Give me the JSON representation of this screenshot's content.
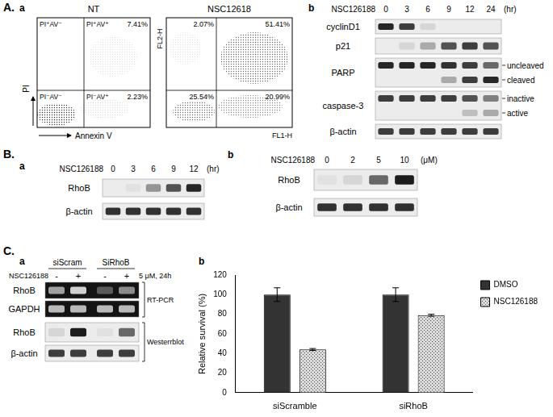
{
  "figure": {
    "A": {
      "label": "A.",
      "a": {
        "label": "a",
        "axis_y": "PI",
        "axis_x": "Annexin V",
        "y_channel": "FL2-H",
        "x_channel": "FL1-H",
        "plots": [
          {
            "title": "NT",
            "quadrants": {
              "upper_left": {
                "label": "PI⁺AV⁻"
              },
              "upper_right": {
                "label": "PI⁺AV⁺",
                "percent": "7.41%"
              },
              "lower_left": {
                "label": "PI⁻AV⁻"
              },
              "lower_right": {
                "label": "PI⁻AV⁺",
                "percent": "2.23%"
              }
            }
          },
          {
            "title": "NSC12618",
            "quadrants": {
              "upper_left": {
                "percent": "2.07%"
              },
              "upper_right": {
                "percent": "51.41%"
              },
              "lower_left": {
                "percent": "25.54%"
              },
              "lower_right": {
                "percent": "20.99%"
              }
            }
          }
        ]
      },
      "b": {
        "label": "b",
        "treatment": "NSC126188",
        "lanes": [
          "0",
          "3",
          "6",
          "9",
          "12",
          "24"
        ],
        "unit": "(hr)",
        "rows": [
          {
            "label": "cyclinD1",
            "bands": [
              [
                0.9,
                0.8,
                0.1,
                0,
                0,
                0
              ]
            ]
          },
          {
            "label": "p21",
            "bands": [
              [
                0,
                0.1,
                0.3,
                0.7,
                0.8,
                0.7
              ]
            ]
          },
          {
            "label": "PARP",
            "sublabels": [
              "uncleaved",
              "cleaved"
            ],
            "bands": [
              [
                0.9,
                0.9,
                0.9,
                0.85,
                0.8,
                0.6
              ],
              [
                0,
                0,
                0,
                0.3,
                0.8,
                0.9
              ]
            ]
          },
          {
            "label": "caspase-3",
            "sublabels": [
              "inactive",
              "active"
            ],
            "bands": [
              [
                0.8,
                0.8,
                0.8,
                0.8,
                0.7,
                0.5
              ],
              [
                0,
                0,
                0,
                0,
                0.2,
                0.3
              ]
            ]
          },
          {
            "label": "β-actin",
            "bands": [
              [
                0.8,
                0.8,
                0.8,
                0.8,
                0.8,
                0.8
              ]
            ]
          }
        ]
      }
    },
    "B": {
      "label": "B.",
      "a": {
        "label": "a",
        "treatment": "NSC126188",
        "lanes": [
          "0",
          "3",
          "6",
          "9",
          "12"
        ],
        "unit": "(hr)",
        "rows": [
          {
            "label": "RhoB",
            "bands": [
              [
                0,
                0.05,
                0.4,
                0.7,
                0.9
              ]
            ]
          },
          {
            "label": "β-actin",
            "bands": [
              [
                0.85,
                0.85,
                0.85,
                0.85,
                0.85
              ]
            ]
          }
        ]
      },
      "b": {
        "label": "b",
        "treatment": "NSC126188",
        "lanes": [
          "0",
          "2",
          "5",
          "10"
        ],
        "unit": "(μM)",
        "rows": [
          {
            "label": "RhoB",
            "bands": [
              [
                0.05,
                0.1,
                0.6,
                0.95
              ]
            ]
          },
          {
            "label": "β-actin",
            "bands": [
              [
                0.85,
                0.85,
                0.85,
                0.85
              ]
            ]
          }
        ]
      }
    },
    "C": {
      "label": "C.",
      "a": {
        "label": "a",
        "groups": [
          "siScram",
          "SiRhoB"
        ],
        "treatment": "NSC126188",
        "lanes": [
          "-",
          "+",
          "-",
          "+"
        ],
        "condition": "5 μM, 24h",
        "sections": [
          {
            "label": "RT-PCR",
            "rows": [
              {
                "label": "RhoB",
                "bands": [
                  [
                    0.6,
                    0.8,
                    0.3,
                    0.5
                  ]
                ]
              },
              {
                "label": "GAPDH",
                "bands": [
                  [
                    0.7,
                    0.7,
                    0.7,
                    0.7
                  ]
                ]
              }
            ]
          },
          {
            "label": "Westerrblot",
            "rows": [
              {
                "label": "RhoB",
                "bands": [
                  [
                    0.1,
                    0.95,
                    0.05,
                    0.6
                  ]
                ]
              },
              {
                "label": "β-actin",
                "bands": [
                  [
                    0.8,
                    0.8,
                    0.8,
                    0.8
                  ]
                ]
              }
            ]
          }
        ]
      },
      "b": {
        "label": "b"
      }
    }
  },
  "chart_data": {
    "type": "bar",
    "categories": [
      "siScramble",
      "siRhoB"
    ],
    "series": [
      {
        "name": "DMSO",
        "color": "#333333",
        "values": [
          100,
          100
        ],
        "errors": [
          7,
          7
        ]
      },
      {
        "name": "NSC126188",
        "color": "#d9d9d9",
        "values": [
          44,
          79
        ],
        "errors": [
          1,
          1
        ]
      }
    ],
    "y_label": "Relative survival (%)",
    "ylim": [
      0,
      120
    ],
    "yticks": [
      0,
      20,
      40,
      60,
      80,
      100,
      120
    ],
    "grid": false,
    "legend": "right"
  }
}
